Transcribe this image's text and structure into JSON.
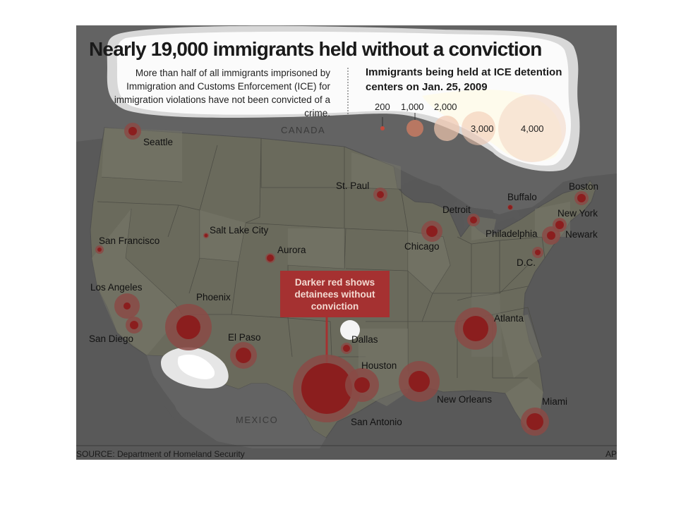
{
  "title": "Nearly 19,000 immigrants held without a conviction",
  "intro": "More than half of all immigrants imprisoned by Immigration and Customs Enforcement (ICE) for immigration violations have not been convicted of a crime.",
  "legend": {
    "title_line1": "Immigrants being held at ICE detention",
    "title_line2": "centers on Jan. 25, 2009",
    "sizes": [
      "200",
      "1,000",
      "2,000",
      "3,000",
      "4,000"
    ]
  },
  "callout": "Darker red shows detainees without conviction",
  "regions": {
    "canada": "CANADA",
    "mexico": "MEXICO"
  },
  "places": {
    "seattle": "Seattle",
    "san_francisco": "San Francisco",
    "los_angeles": "Los Angeles",
    "san_diego": "San Diego",
    "phoenix": "Phoenix",
    "salt_lake_city": "Salt Lake City",
    "aurora": "Aurora",
    "el_paso": "El Paso",
    "st_paul": "St. Paul",
    "chicago": "Chicago",
    "detroit": "Detroit",
    "buffalo": "Buffalo",
    "boston": "Boston",
    "new_york": "New York",
    "newark": "Newark",
    "philadelphia": "Philadelphia",
    "dc": "D.C.",
    "dallas": "Dallas",
    "houston": "Houston",
    "san_antonio": "San Antonio",
    "new_orleans": "New Orleans",
    "atlanta": "Atlanta",
    "miami": "Miami"
  },
  "source": "SOURCE: Department of Homeland Security",
  "credit": "AP",
  "colors": {
    "background": "#5e5e5e",
    "land_states": "#6b6b5e",
    "ocean": "#5a5a5a",
    "outer_ring": "#8a4a45",
    "inner_dot": "#8b1e1e",
    "callout": "#a53131",
    "text": "#1a1a1a"
  }
}
